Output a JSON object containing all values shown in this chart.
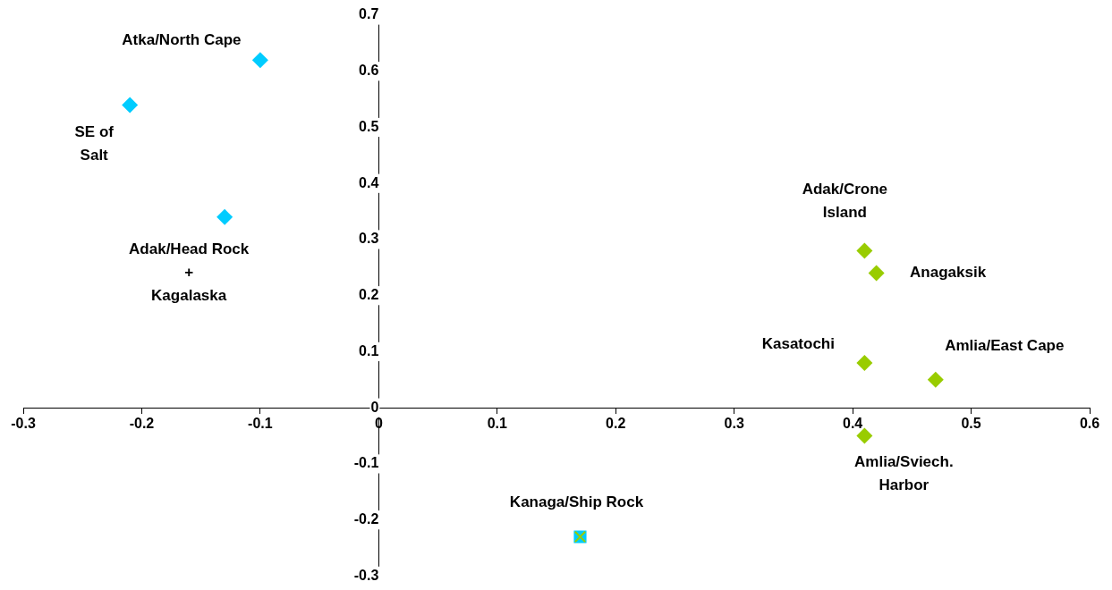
{
  "chart_data": {
    "type": "scatter",
    "xlim": [
      -0.3,
      0.6
    ],
    "xticks": [
      -0.3,
      -0.2,
      -0.1,
      0,
      0.1,
      0.2,
      0.3,
      0.4,
      0.5,
      0.6
    ],
    "ylim": [
      -0.3,
      0.7
    ],
    "yticks": [
      -0.3,
      -0.2,
      -0.1,
      0,
      0.1,
      0.2,
      0.3,
      0.4,
      0.5,
      0.6,
      0.7
    ],
    "grid": false,
    "legend": false,
    "series": [
      {
        "color": "#00ccff",
        "marker": "diamond",
        "x": [
          -0.1,
          -0.21,
          -0.13
        ],
        "values": [
          0.62,
          0.54,
          0.34
        ]
      },
      {
        "color": "#99cc00",
        "marker": "diamond",
        "x": [
          0.41,
          0.42,
          0.41,
          0.47,
          0.41
        ],
        "values": [
          0.28,
          0.24,
          0.08,
          0.05,
          -0.05
        ]
      },
      {
        "color": "#99cc00",
        "marker": "cross",
        "x": [
          0.17
        ],
        "values": [
          -0.23
        ]
      },
      {
        "color": "#00ccff",
        "marker": "square",
        "x": [
          0.17
        ],
        "values": [
          -0.23
        ]
      }
    ],
    "annotations": [
      {
        "text": "Atka/North Cape",
        "x": -0.1,
        "y": 0.62
      },
      {
        "text": "SE of\nSalt",
        "x": -0.21,
        "y": 0.54
      },
      {
        "text": "Adak/Head Rock\n+\nKagalaska",
        "x": -0.13,
        "y": 0.34
      },
      {
        "text": "Adak/Crone\nIsland",
        "x": 0.41,
        "y": 0.28
      },
      {
        "text": "Anagaksik",
        "x": 0.42,
        "y": 0.24
      },
      {
        "text": "Kasatochi",
        "x": 0.41,
        "y": 0.08
      },
      {
        "text": "Amlia/East Cape",
        "x": 0.47,
        "y": 0.05
      },
      {
        "text": "Amlia/Sviech.\nHarbor",
        "x": 0.41,
        "y": -0.05
      },
      {
        "text": "Kanaga/Ship Rock",
        "x": 0.17,
        "y": -0.23
      }
    ]
  }
}
